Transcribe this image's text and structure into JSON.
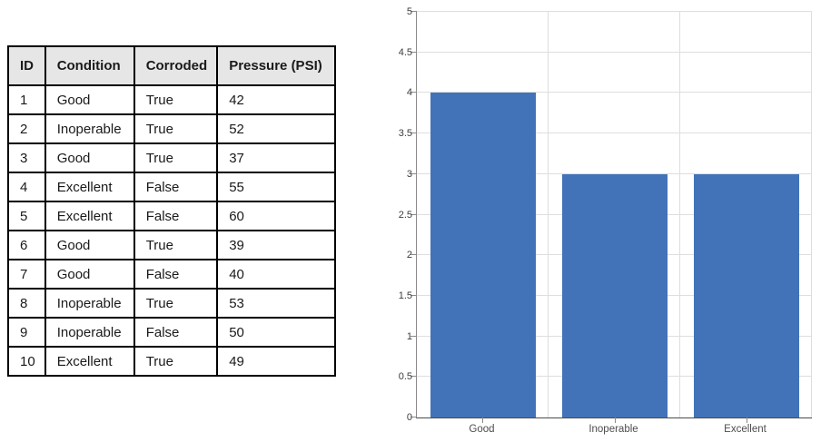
{
  "table": {
    "headers": [
      "ID",
      "Condition",
      "Corroded",
      "Pressure (PSI)"
    ],
    "rows": [
      [
        "1",
        "Good",
        "True",
        "42"
      ],
      [
        "2",
        "Inoperable",
        "True",
        "52"
      ],
      [
        "3",
        "Good",
        "True",
        "37"
      ],
      [
        "4",
        "Excellent",
        "False",
        "55"
      ],
      [
        "5",
        "Excellent",
        "False",
        "60"
      ],
      [
        "6",
        "Good",
        "True",
        "39"
      ],
      [
        "7",
        "Good",
        "False",
        "40"
      ],
      [
        "8",
        "Inoperable",
        "True",
        "53"
      ],
      [
        "9",
        "Inoperable",
        "False",
        "50"
      ],
      [
        "10",
        "Excellent",
        "True",
        "49"
      ]
    ]
  },
  "chart_data": {
    "type": "bar",
    "categories": [
      "Good",
      "Inoperable",
      "Excellent"
    ],
    "values": [
      4,
      3,
      3
    ],
    "title": "",
    "xlabel": "",
    "ylabel": "",
    "ylim": [
      0,
      5
    ],
    "ytick_step": 0.5,
    "ytick_labels": [
      "0",
      "0.5",
      "1",
      "1.5",
      "2",
      "2.5",
      "3",
      "3.5",
      "4",
      "4.5",
      "5"
    ],
    "grid": true,
    "legend_position": "none",
    "bar_color": "#4273b8"
  },
  "colors": {
    "table_header_bg": "#e7e6e6",
    "table_border": "#000000",
    "gridline": "#dedede",
    "axis": "#8a8a8a",
    "bar": "#4273b8"
  }
}
